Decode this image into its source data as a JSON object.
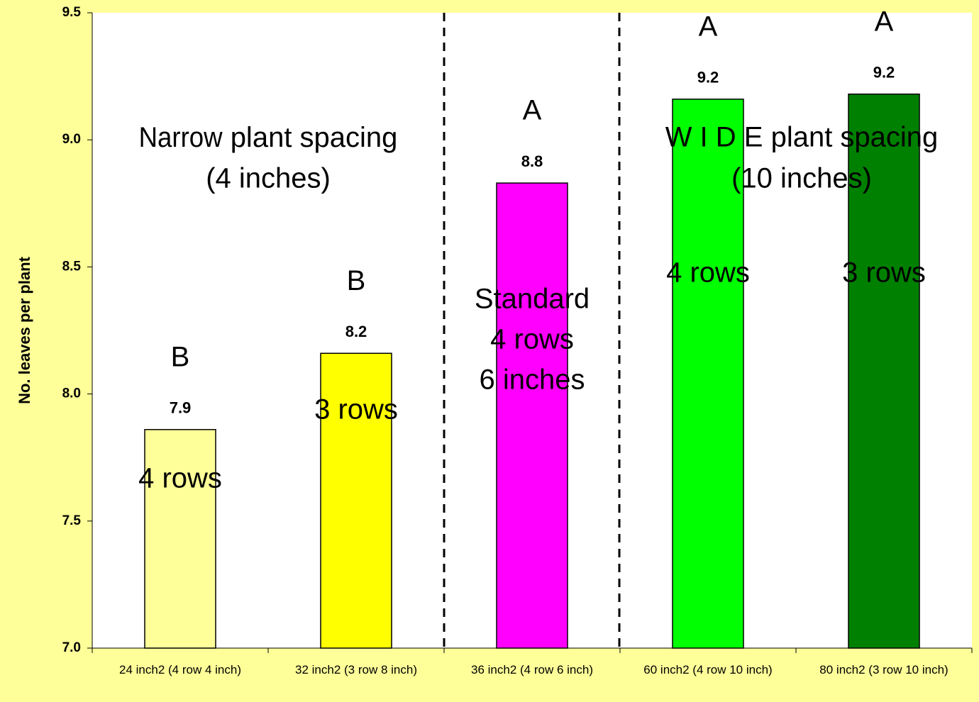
{
  "chart_data": {
    "type": "bar",
    "ylabel": "No. leaves per plant",
    "categories": [
      "24 inch2 (4 row 4 inch)",
      "32 inch2 (3 row 8 inch)",
      "36 inch2 (4 row 6 inch)",
      "60 inch2 (4 row 10 inch)",
      "80 inch2 (3 row 10 inch)"
    ],
    "values": [
      7.86,
      8.16,
      8.83,
      9.16,
      9.18
    ],
    "value_labels": [
      "7.9",
      "8.2",
      "8.8",
      "9.2",
      "9.2"
    ],
    "colors": [
      "#ffff99",
      "#ffff00",
      "#ff00ff",
      "#00ff00",
      "#008000"
    ],
    "letters": [
      "B",
      "B",
      "A",
      "A",
      "A"
    ],
    "bar_texts": [
      [
        "4 rows"
      ],
      [
        "3 rows"
      ],
      [
        "Standard",
        "4 rows",
        "6 inches"
      ],
      [
        "4 rows"
      ],
      [
        "3 rows"
      ]
    ],
    "annotations": [
      "Narrow",
      "plant spacing",
      "(4 inches)",
      "W I D E plant spacing",
      "(10 inches)"
    ],
    "ylim": [
      7.0,
      9.5
    ],
    "yticks": [
      {
        "value": 7,
        "label": "7.0"
      },
      7.5,
      {
        "value": 8,
        "label": "8.0"
      },
      8.5,
      {
        "value": 9,
        "label": "9.0"
      },
      9.5
    ],
    "grid": false
  }
}
